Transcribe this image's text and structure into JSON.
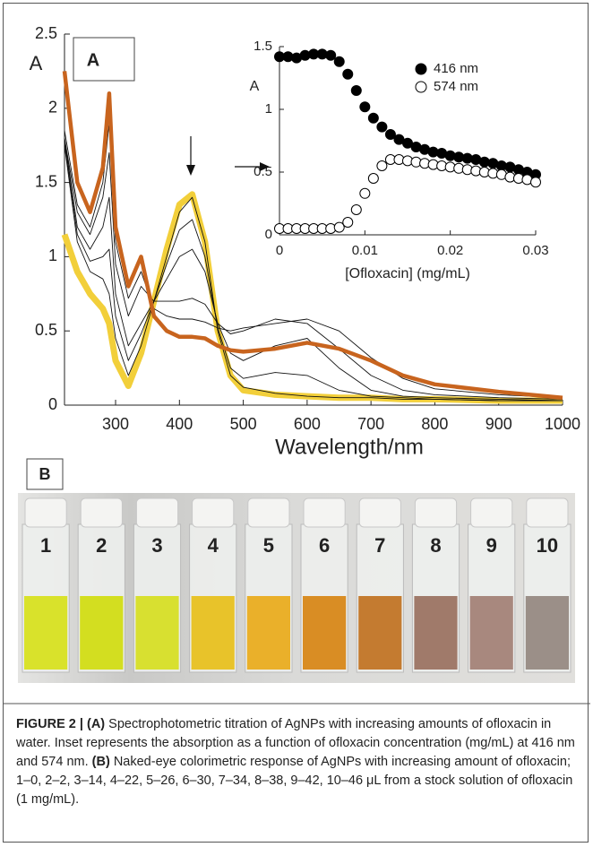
{
  "chart_data": [
    {
      "type": "line",
      "y_label": "A",
      "x_label": "Wavelength/nm",
      "x": [
        220,
        240,
        260,
        280,
        290,
        300,
        320,
        340,
        360,
        380,
        400,
        420,
        440,
        460,
        480,
        500,
        550,
        600,
        650,
        700,
        750,
        800,
        900,
        1000
      ],
      "xlim": [
        220,
        1000
      ],
      "xticks": [
        300,
        400,
        500,
        600,
        700,
        800,
        900,
        1000
      ],
      "ylim": [
        0,
        2.5
      ],
      "yticks": [
        0,
        0.5,
        1,
        1.5,
        2,
        2.5
      ],
      "series": [
        {
          "color": "#f2cf3a",
          "values": [
            1.15,
            0.9,
            0.75,
            0.65,
            0.55,
            0.3,
            0.13,
            0.35,
            0.7,
            1.05,
            1.35,
            1.42,
            1.1,
            0.5,
            0.2,
            0.1,
            0.07,
            0.06,
            0.05,
            0.05,
            0.04,
            0.04,
            0.03,
            0.03
          ]
        },
        {
          "color": "#111111",
          "values": [
            1.75,
            1.1,
            0.9,
            0.85,
            0.75,
            0.45,
            0.2,
            0.4,
            0.7,
            1.0,
            1.3,
            1.4,
            1.1,
            0.5,
            0.2,
            0.12,
            0.08,
            0.06,
            0.05,
            0.05,
            0.04,
            0.04,
            0.03,
            0.03
          ]
        },
        {
          "color": "#111111",
          "values": [
            1.78,
            1.15,
            0.97,
            1.0,
            1.05,
            0.6,
            0.3,
            0.48,
            0.7,
            0.95,
            1.18,
            1.25,
            1.0,
            0.52,
            0.25,
            0.18,
            0.22,
            0.2,
            0.1,
            0.06,
            0.05,
            0.04,
            0.03,
            0.03
          ]
        },
        {
          "color": "#111111",
          "values": [
            1.8,
            1.2,
            1.05,
            1.2,
            1.4,
            0.75,
            0.4,
            0.55,
            0.7,
            0.85,
            1.0,
            1.05,
            0.9,
            0.55,
            0.35,
            0.3,
            0.4,
            0.45,
            0.25,
            0.1,
            0.06,
            0.05,
            0.04,
            0.03
          ]
        },
        {
          "color": "#111111",
          "values": [
            1.8,
            1.3,
            1.15,
            1.4,
            1.7,
            0.95,
            0.6,
            0.8,
            0.7,
            0.7,
            0.7,
            0.72,
            0.68,
            0.55,
            0.48,
            0.5,
            0.58,
            0.55,
            0.38,
            0.2,
            0.1,
            0.07,
            0.05,
            0.04
          ]
        },
        {
          "color": "#111111",
          "values": [
            1.85,
            1.35,
            1.2,
            1.5,
            1.9,
            1.1,
            0.72,
            0.9,
            0.65,
            0.6,
            0.58,
            0.58,
            0.56,
            0.52,
            0.5,
            0.52,
            0.55,
            0.58,
            0.5,
            0.32,
            0.18,
            0.11,
            0.07,
            0.05
          ]
        },
        {
          "color": "#c8641e",
          "values": [
            2.25,
            1.5,
            1.3,
            1.6,
            2.1,
            1.2,
            0.8,
            1.0,
            0.6,
            0.5,
            0.46,
            0.46,
            0.45,
            0.4,
            0.37,
            0.36,
            0.38,
            0.42,
            0.38,
            0.3,
            0.2,
            0.14,
            0.09,
            0.05
          ]
        }
      ]
    },
    {
      "type": "scatter",
      "y_label": "A",
      "x_label": "[Ofloxacin] (mg/mL)",
      "legend": "upper right",
      "x": [
        0,
        0.001,
        0.002,
        0.003,
        0.004,
        0.005,
        0.006,
        0.007,
        0.008,
        0.009,
        0.01,
        0.011,
        0.012,
        0.013,
        0.014,
        0.015,
        0.016,
        0.017,
        0.018,
        0.019,
        0.02,
        0.021,
        0.022,
        0.023,
        0.024,
        0.025,
        0.026,
        0.027,
        0.028,
        0.029,
        0.03
      ],
      "xlim": [
        0,
        0.03
      ],
      "xticks": [
        0,
        0.01,
        0.02,
        0.03
      ],
      "ylim": [
        0,
        1.5
      ],
      "yticks": [
        0,
        0.5,
        1,
        1.5
      ],
      "series": [
        {
          "name": "416 nm",
          "color": "#000000",
          "values": [
            1.42,
            1.42,
            1.41,
            1.43,
            1.44,
            1.44,
            1.43,
            1.38,
            1.28,
            1.15,
            1.02,
            0.93,
            0.86,
            0.8,
            0.76,
            0.73,
            0.7,
            0.68,
            0.66,
            0.65,
            0.63,
            0.62,
            0.61,
            0.6,
            0.58,
            0.57,
            0.55,
            0.54,
            0.52,
            0.5,
            0.48
          ]
        },
        {
          "name": "574 nm",
          "color": "#ffffff",
          "values": [
            0.05,
            0.05,
            0.05,
            0.05,
            0.05,
            0.05,
            0.05,
            0.06,
            0.1,
            0.2,
            0.33,
            0.45,
            0.55,
            0.6,
            0.6,
            0.59,
            0.58,
            0.57,
            0.56,
            0.55,
            0.54,
            0.53,
            0.52,
            0.51,
            0.5,
            0.49,
            0.48,
            0.46,
            0.45,
            0.44,
            0.42
          ]
        }
      ]
    }
  ],
  "panels": {
    "a": "A",
    "b": "B"
  },
  "vials": [
    {
      "label": "1",
      "color": "#d9e22b"
    },
    {
      "label": "2",
      "color": "#d3de20"
    },
    {
      "label": "3",
      "color": "#d8e030"
    },
    {
      "label": "4",
      "color": "#e8c32a"
    },
    {
      "label": "5",
      "color": "#eab02a"
    },
    {
      "label": "6",
      "color": "#d98d24"
    },
    {
      "label": "7",
      "color": "#c47b30"
    },
    {
      "label": "8",
      "color": "#a07a6a"
    },
    {
      "label": "9",
      "color": "#a8887e"
    },
    {
      "label": "10",
      "color": "#9b8f88"
    }
  ],
  "caption": {
    "figure_label": "FIGURE 2 |",
    "part_a_label": "(A)",
    "part_a_text": "Spectrophotometric titration of AgNPs with increasing amounts of ofloxacin in water. Inset represents the absorption as a function of ofloxacin concentration (mg/mL) at 416 nm and 574 nm.",
    "part_b_label": "(B)",
    "part_b_text": "Naked-eye colorimetric response of AgNPs with increasing amount of ofloxacin; 1–0, 2–2, 3–14, 4–22, 5–26, 6–30, 7–34, 8–38, 9–42, 10–46 μL from a stock solution of ofloxacin (1 mg/mL)."
  }
}
